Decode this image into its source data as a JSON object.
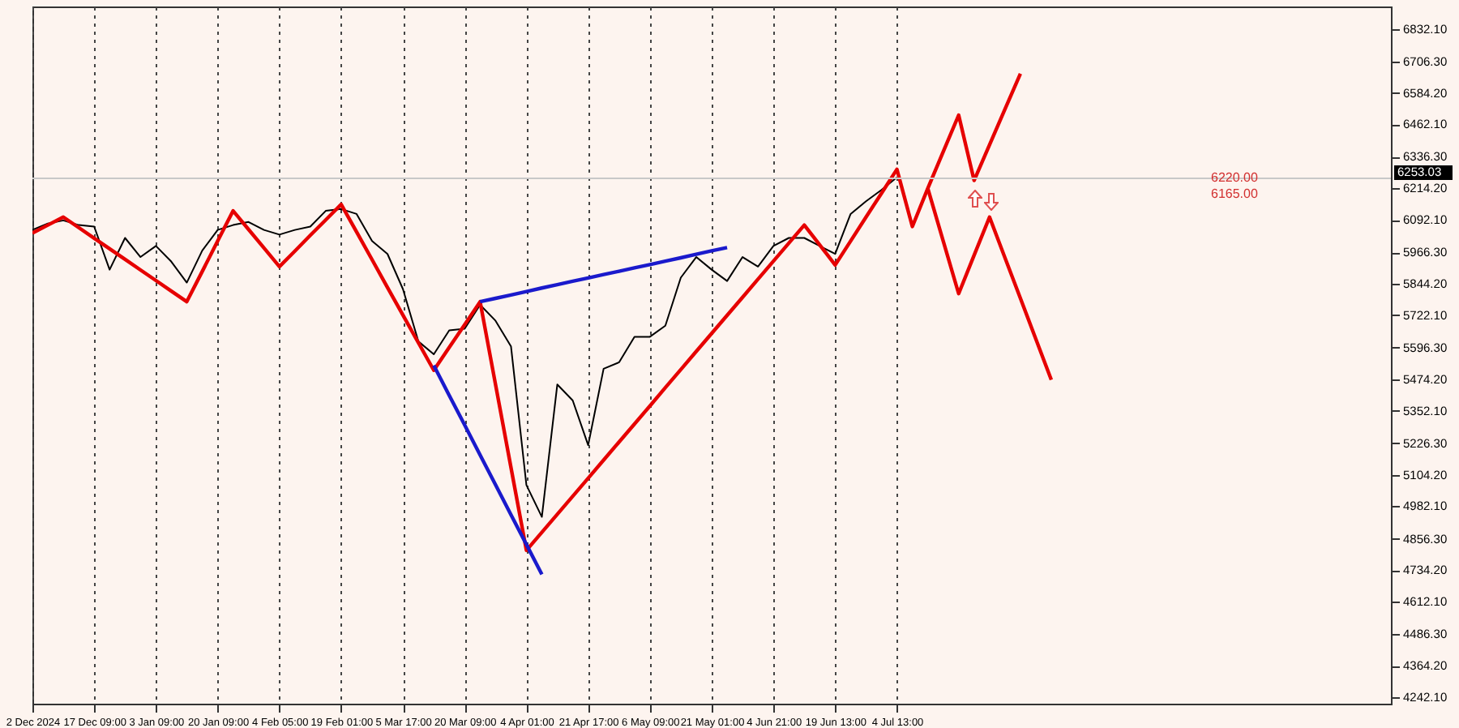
{
  "chart_data": {
    "type": "line",
    "categories": [
      "2 Dec 2024",
      null,
      null,
      null,
      "17 Dec 09:00",
      null,
      null,
      null,
      "3 Jan 09:00",
      null,
      null,
      null,
      "20 Jan 09:00",
      null,
      null,
      null,
      "4 Feb 05:00",
      null,
      null,
      null,
      "19 Feb 01:00",
      null,
      null,
      null,
      "5 Mar 17:00",
      null,
      null,
      null,
      "20 Mar 09:00",
      null,
      null,
      null,
      "4 Apr 01:00",
      null,
      null,
      null,
      "21 Apr 17:00",
      null,
      null,
      null,
      "6 May 09:00",
      null,
      null,
      null,
      "21 May 01:00",
      null,
      null,
      null,
      "4 Jun 21:00",
      null,
      null,
      null,
      "19 Jun 13:00",
      null,
      null,
      null,
      "4 Jul 13:00",
      null,
      null,
      null,
      null,
      null,
      null,
      null,
      null,
      null,
      null,
      null,
      null,
      null,
      null,
      null,
      null,
      null,
      null,
      null,
      null,
      null,
      null,
      null,
      null,
      null,
      null,
      null,
      null,
      null,
      null,
      null,
      null
    ],
    "ylim": [
      4217,
      6919
    ],
    "yticks": [
      {
        "value": 4242.1,
        "label": "4242.10"
      },
      {
        "value": 4364.2,
        "label": "4364.20"
      },
      {
        "value": 4486.3,
        "label": "4486.30"
      },
      {
        "value": 4612.1,
        "label": "4612.10"
      },
      {
        "value": 4734.2,
        "label": "4734.20"
      },
      {
        "value": 4856.3,
        "label": "4856.30"
      },
      {
        "value": 4982.1,
        "label": "4982.10"
      },
      {
        "value": 5104.2,
        "label": "5104.20"
      },
      {
        "value": 5226.3,
        "label": "5226.30"
      },
      {
        "value": 5352.1,
        "label": "5352.10"
      },
      {
        "value": 5474.2,
        "label": "5474.20"
      },
      {
        "value": 5596.3,
        "label": "5596.30"
      },
      {
        "value": 5722.1,
        "label": "5722.10"
      },
      {
        "value": 5844.2,
        "label": "5844.20"
      },
      {
        "value": 5966.3,
        "label": "5966.30"
      },
      {
        "value": 6092.1,
        "label": "6092.10"
      },
      {
        "value": 6214.2,
        "label": "6214.20"
      },
      {
        "value": 6336.3,
        "label": "6336.30"
      },
      {
        "value": 6462.1,
        "label": "6462.10"
      },
      {
        "value": 6584.2,
        "label": "6584.20"
      },
      {
        "value": 6706.3,
        "label": "6706.30"
      },
      {
        "value": 6832.1,
        "label": "6832.10"
      }
    ],
    "grid": "x",
    "series": [
      {
        "color": "#000000",
        "values": [
          6053,
          6078,
          6090,
          6072,
          6066,
          5899,
          6022,
          5948,
          5991,
          5930,
          5849,
          5973,
          6053,
          6072,
          6084,
          6053,
          6035,
          6053,
          6066,
          6127,
          6134,
          6115,
          6010,
          5960,
          5824,
          5621,
          5571,
          5664,
          5670,
          5763,
          5701,
          5602,
          5064,
          4941,
          5454,
          5392,
          5219,
          5515,
          5540,
          5639,
          5639,
          5682,
          5868,
          5948,
          5899,
          5855,
          5948,
          5911,
          5991,
          6022,
          6022,
          5991,
          5960,
          6115,
          6164,
          6208,
          6257,
          null,
          null,
          null,
          null,
          null,
          null,
          null,
          null,
          null,
          null,
          null,
          null,
          null,
          null,
          null,
          null,
          null,
          null,
          null,
          null,
          null,
          null,
          null,
          null,
          null,
          null,
          null,
          null,
          null,
          null,
          null,
          null
        ]
      },
      {
        "color": "#e60000",
        "values": [
          6041,
          6072,
          6103,
          6062,
          6021,
          5980,
          5939,
          5898,
          5857,
          5816,
          5775,
          5892,
          6010,
          6127,
          6055,
          5983,
          5911,
          5971,
          6032,
          6092,
          6152,
          6045,
          5938,
          5830,
          5723,
          5616,
          5509,
          5598,
          5686,
          5775,
          5454,
          5132,
          4811,
          4881,
          4951,
          5021,
          5091,
          5161,
          5231,
          5301,
          5371,
          5442,
          5512,
          5582,
          5652,
          5722,
          5792,
          5862,
          5932,
          6002,
          6072,
          5995,
          5917,
          6010,
          6103,
          6195,
          6288,
          6066,
          6214,
          6356,
          6498,
          6245,
          6383,
          6521,
          6659,
          null,
          null,
          null,
          null,
          null,
          null,
          null,
          null,
          null,
          null,
          null,
          null,
          null,
          null,
          null,
          null,
          null,
          null,
          null,
          null,
          null,
          null,
          null,
          null
        ]
      },
      {
        "color": "#e60000",
        "values": [
          null,
          null,
          null,
          null,
          null,
          null,
          null,
          null,
          null,
          null,
          null,
          null,
          null,
          null,
          null,
          null,
          null,
          null,
          null,
          null,
          null,
          null,
          null,
          null,
          null,
          null,
          null,
          null,
          null,
          null,
          null,
          null,
          null,
          null,
          null,
          null,
          null,
          null,
          null,
          null,
          null,
          null,
          null,
          null,
          null,
          null,
          null,
          null,
          null,
          null,
          null,
          null,
          null,
          null,
          null,
          null,
          null,
          null,
          6214,
          6010,
          5806,
          5955,
          6103,
          5945,
          5788,
          5630,
          5472,
          null,
          null,
          null,
          null,
          null,
          null,
          null,
          null,
          null,
          null,
          null,
          null,
          null,
          null,
          null,
          null,
          null,
          null,
          null,
          null,
          null,
          null
        ]
      },
      {
        "color": "#1a1acc",
        "values": [
          null,
          null,
          null,
          null,
          null,
          null,
          null,
          null,
          null,
          null,
          null,
          null,
          null,
          null,
          null,
          null,
          null,
          null,
          null,
          null,
          null,
          null,
          null,
          null,
          null,
          null,
          5528,
          5412,
          5297,
          5181,
          5065,
          4949,
          4834,
          4718,
          null,
          null,
          null,
          null,
          null,
          null,
          null,
          null,
          null,
          null,
          null,
          null,
          null,
          null,
          null,
          null,
          null,
          null,
          null,
          null,
          null,
          null,
          null,
          null,
          null,
          null,
          null,
          null,
          null,
          null,
          null,
          null,
          null,
          null,
          null,
          null,
          null,
          null,
          null,
          null,
          null,
          null,
          null,
          null,
          null,
          null,
          null,
          null,
          null,
          null,
          null,
          null,
          null,
          null,
          null
        ]
      },
      {
        "color": "#1a1acc",
        "values": [
          null,
          null,
          null,
          null,
          null,
          null,
          null,
          null,
          null,
          null,
          null,
          null,
          null,
          null,
          null,
          null,
          null,
          null,
          null,
          null,
          null,
          null,
          null,
          null,
          null,
          null,
          null,
          null,
          null,
          5775,
          5788,
          5801,
          5814,
          5828,
          5841,
          5854,
          5867,
          5880,
          5893,
          5906,
          5919,
          5932,
          5945,
          5959,
          5972,
          5985,
          null,
          null,
          null,
          null,
          null,
          null,
          null,
          null,
          null,
          null,
          null,
          null,
          null,
          null,
          null,
          null,
          null,
          null,
          null,
          null,
          null,
          null,
          null,
          null,
          null,
          null,
          null,
          null,
          null,
          null,
          null,
          null,
          null,
          null,
          null,
          null,
          null,
          null,
          null,
          null,
          null,
          null,
          null
        ]
      }
    ],
    "ref_lines": [
      {
        "axis": "y",
        "value": 6253.03,
        "label": "6253.03",
        "color": "#c8c8c8"
      }
    ],
    "annotations": [
      "6220.00",
      "6165.00"
    ]
  }
}
